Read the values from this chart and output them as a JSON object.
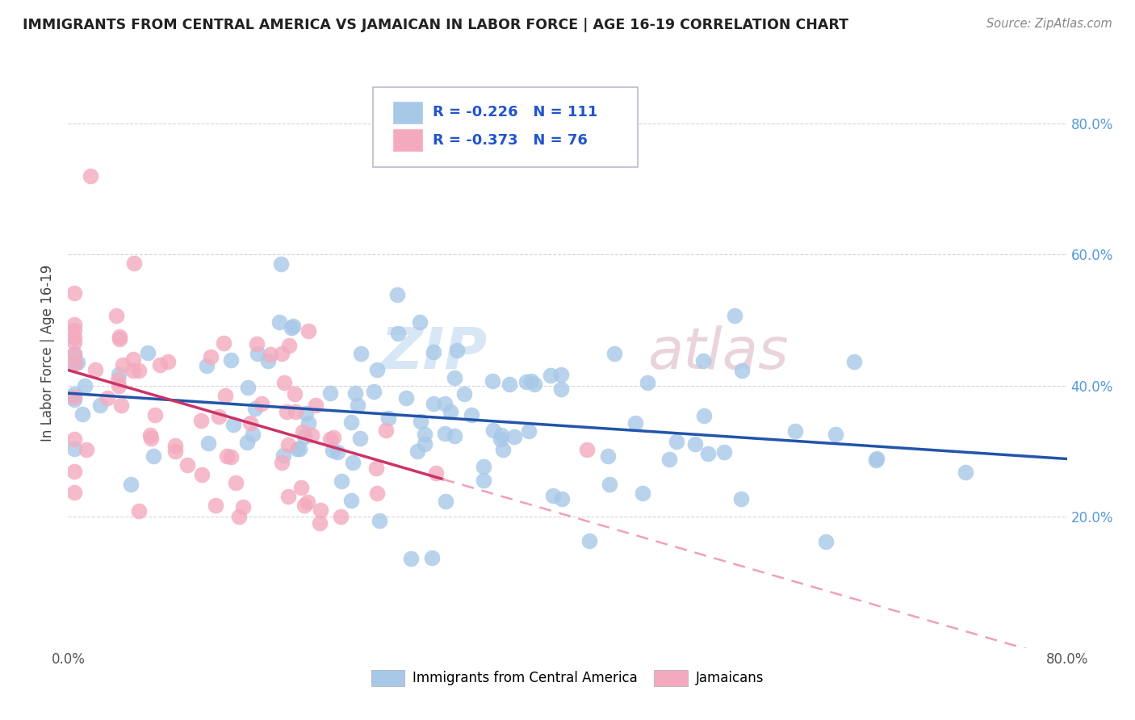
{
  "title": "IMMIGRANTS FROM CENTRAL AMERICA VS JAMAICAN IN LABOR FORCE | AGE 16-19 CORRELATION CHART",
  "source": "Source: ZipAtlas.com",
  "ylabel": "In Labor Force | Age 16-19",
  "y_ticks": [
    0.2,
    0.4,
    0.6,
    0.8
  ],
  "y_tick_labels": [
    "20.0%",
    "40.0%",
    "60.0%",
    "80.0%"
  ],
  "xlim": [
    0.0,
    0.8
  ],
  "ylim": [
    0.0,
    0.9
  ],
  "blue_R": -0.226,
  "blue_N": 111,
  "pink_R": -0.373,
  "pink_N": 76,
  "blue_color": "#a8c8e8",
  "pink_color": "#f4aabe",
  "blue_line_color": "#2255aa",
  "pink_line_color": "#cc3366",
  "pink_line_dash_color": "#f0a0b8",
  "legend_label_blue": "Immigrants from Central America",
  "legend_label_pink": "Jamaicans",
  "watermark_zip": "ZIP",
  "watermark_atlas": "atlas",
  "background_color": "#ffffff",
  "grid_color": "#cccccc",
  "title_color": "#222222",
  "source_color": "#888888",
  "ytick_color": "#5599dd",
  "xtick_color": "#555555"
}
